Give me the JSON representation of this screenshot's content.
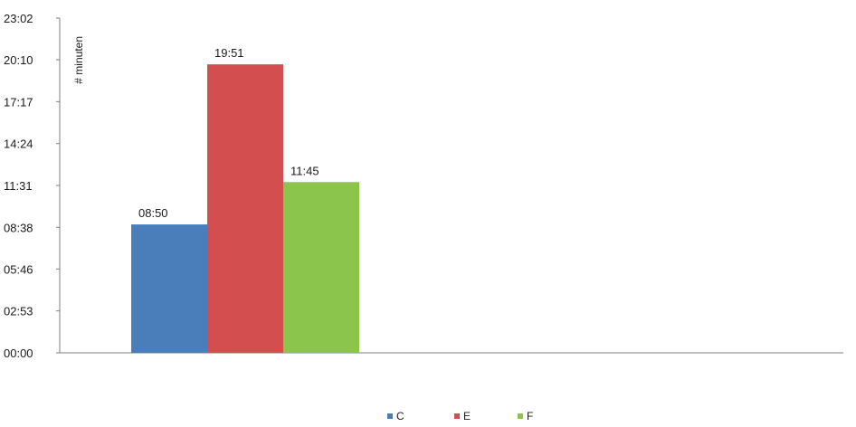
{
  "chart_data": {
    "type": "bar",
    "ylabel": "# minuten",
    "y_unit": "mm:ss",
    "ylim": [
      "00:00",
      "23:02"
    ],
    "y_ticks": [
      "00:00",
      "02:53",
      "05:46",
      "08:38",
      "11:31",
      "14:24",
      "17:17",
      "20:10",
      "23:02"
    ],
    "series": [
      {
        "name": "C",
        "value": "08:50",
        "color": "#4a7ebb"
      },
      {
        "name": "E",
        "value": "19:51",
        "color": "#d34f4f"
      },
      {
        "name": "F",
        "value": "11:45",
        "color": "#8cc54c"
      }
    ],
    "legend_position": "bottom",
    "grid": false
  }
}
